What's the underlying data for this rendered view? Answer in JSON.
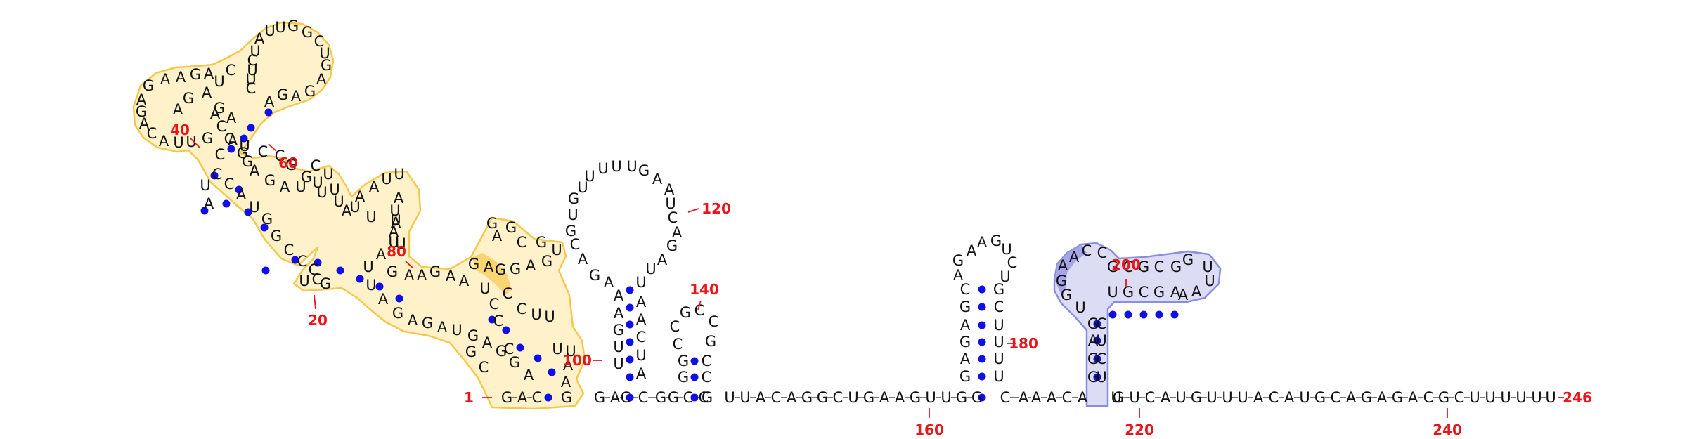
{
  "sequence_length": 246,
  "colors": {
    "nucleotide": "#111111",
    "backbone_link": "#333333",
    "pair_dot": "#1010e6",
    "number_label": "#e8161b",
    "highlight_yellow_fill": "#fff1c9",
    "highlight_yellow_stroke": "#f5c84c",
    "highlight_yellow_strong": "#f7d061",
    "highlight_blue_fill": "#dcdcf5",
    "highlight_blue_stroke": "#8c8ce0",
    "highlight_blue_strong": "#9e9ee6"
  },
  "tail_text": "UCAUGUUUACAUGCAGAGACGCUUUUUU",
  "number_labels": [
    {
      "text": "1"
    },
    {
      "text": "20"
    },
    {
      "text": "40"
    },
    {
      "text": "60"
    },
    {
      "text": "80"
    },
    {
      "text": "100"
    },
    {
      "text": "120"
    },
    {
      "text": "140"
    },
    {
      "text": "160"
    },
    {
      "text": "180"
    },
    {
      "text": "200"
    },
    {
      "text": "220"
    },
    {
      "text": "240"
    },
    {
      "text": "246"
    }
  ]
}
